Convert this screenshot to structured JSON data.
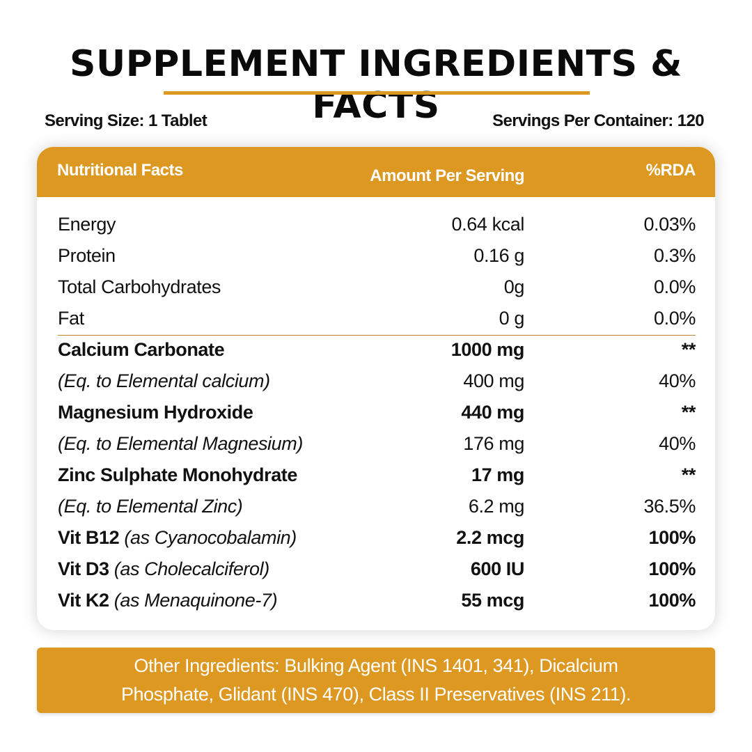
{
  "title": "SUPPLEMENT INGREDIENTS & FACTS",
  "serving_size": "Serving Size: 1 Tablet",
  "servings_per_container": "Servings Per Container: 120",
  "colors": {
    "accent": "#dd9822",
    "text": "#111111"
  },
  "table": {
    "headers": {
      "name": "Nutritional Facts",
      "amount": "Amount Per Serving",
      "rda": "%RDA"
    },
    "rows": [
      {
        "label": "Energy",
        "note": "",
        "amount": "0.64 kcal",
        "rda": "0.03%",
        "style": "normal"
      },
      {
        "label": "Protein",
        "note": "",
        "amount": "0.16 g",
        "rda": "0.3%",
        "style": "normal"
      },
      {
        "label": "Total Carbohydrates",
        "note": "",
        "amount": "0g",
        "rda": "0.0%",
        "style": "normal"
      },
      {
        "label": "Fat",
        "note": "",
        "amount": "0 g",
        "rda": "0.0%",
        "style": "normal"
      },
      {
        "label": "Calcium Carbonate",
        "note": "",
        "amount": "1000 mg",
        "rda": "**",
        "style": "bold"
      },
      {
        "label": "(Eq. to Elemental calcium)",
        "note": "",
        "amount": "400 mg",
        "rda": "40%",
        "style": "italic"
      },
      {
        "label": "Magnesium Hydroxide",
        "note": "",
        "amount": "440 mg",
        "rda": "**",
        "style": "bold"
      },
      {
        "label": "(Eq. to Elemental Magnesium)",
        "note": "",
        "amount": "176 mg",
        "rda": "40%",
        "style": "italic"
      },
      {
        "label": "Zinc Sulphate Monohydrate",
        "note": "",
        "amount": "17 mg",
        "rda": "**",
        "style": "bold"
      },
      {
        "label": "(Eq. to Elemental Zinc)",
        "note": "",
        "amount": "6.2 mg",
        "rda": "36.5%",
        "style": "italic"
      },
      {
        "label": "Vit B12",
        "note": "(as Cyanocobalamin)",
        "amount": "2.2 mcg",
        "rda": "100%",
        "style": "bold"
      },
      {
        "label": "Vit D3",
        "note": "(as Cholecalciferol)",
        "amount": "600 IU",
        "rda": "100%",
        "style": "bold"
      },
      {
        "label": "Vit K2",
        "note": "(as Menaquinone-7)",
        "amount": "55 mcg",
        "rda": "100%",
        "style": "bold"
      }
    ]
  },
  "other_ingredients": {
    "line1": "Other Ingredients: Bulking Agent (INS 1401, 341), Dicalcium",
    "line2": "Phosphate, Glidant (INS 470), Class II Preservatives (INS 211)."
  }
}
